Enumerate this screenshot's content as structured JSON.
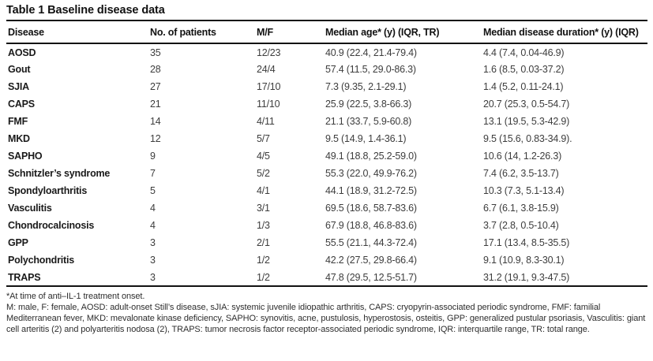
{
  "table": {
    "title": "Table 1 Baseline disease data",
    "columns": [
      "Disease",
      "No. of patients",
      "M/F",
      "Median age* (y) (IQR, TR)",
      "Median disease duration* (y) (IQR)"
    ],
    "rows": [
      {
        "disease": "AOSD",
        "patients": "35",
        "mf": "12/23",
        "age": "40.9 (22.4, 21.4-79.4)",
        "duration": "4.4 (7.4, 0.04-46.9)"
      },
      {
        "disease": "Gout",
        "patients": "28",
        "mf": "24/4",
        "age": "57.4 (11.5, 29.0-86.3)",
        "duration": "1.6 (8.5, 0.03-37.2)"
      },
      {
        "disease": "SJIA",
        "patients": "27",
        "mf": "17/10",
        "age": "7.3 (9.35, 2.1-29.1)",
        "duration": "1.4 (5.2, 0.11-24.1)"
      },
      {
        "disease": "CAPS",
        "patients": "21",
        "mf": "11/10",
        "age": "25.9 (22.5, 3.8-66.3)",
        "duration": "20.7 (25.3, 0.5-54.7)"
      },
      {
        "disease": "FMF",
        "patients": "14",
        "mf": "4/11",
        "age": "21.1 (33.7, 5.9-60.8)",
        "duration": "13.1 (19.5, 5.3-42.9)"
      },
      {
        "disease": "MKD",
        "patients": "12",
        "mf": "5/7",
        "age": "9.5 (14.9, 1.4-36.1)",
        "duration": "9.5 (15.6, 0.83-34.9)."
      },
      {
        "disease": "SAPHO",
        "patients": "9",
        "mf": "4/5",
        "age": "49.1 (18.8, 25.2-59.0)",
        "duration": "10.6 (14, 1.2-26.3)"
      },
      {
        "disease": "Schnitzler’s syndrome",
        "patients": "7",
        "mf": "5/2",
        "age": "55.3 (22.0, 49.9-76.2)",
        "duration": "7.4 (6.2, 3.5-13.7)"
      },
      {
        "disease": "Spondyloarthritis",
        "patients": "5",
        "mf": "4/1",
        "age": "44.1 (18.9, 31.2-72.5)",
        "duration": "10.3 (7.3, 5.1-13.4)"
      },
      {
        "disease": "Vasculitis",
        "patients": "4",
        "mf": "3/1",
        "age": "69.5 (18.6, 58.7-83.6)",
        "duration": "6.7 (6.1, 3.8-15.9)"
      },
      {
        "disease": "Chondrocalcinosis",
        "patients": "4",
        "mf": "1/3",
        "age": "67.9 (18.8, 46.8-83.6)",
        "duration": "3.7 (2.8, 0.5-10.4)"
      },
      {
        "disease": "GPP",
        "patients": "3",
        "mf": "2/1",
        "age": "55.5 (21.1, 44.3-72.4)",
        "duration": "17.1 (13.4, 8.5-35.5)"
      },
      {
        "disease": "Polychondritis",
        "patients": "3",
        "mf": "1/2",
        "age": "42.2 (27.5, 29.8-66.4)",
        "duration": "9.1 (10.9, 8.3-30.1)"
      },
      {
        "disease": "TRAPS",
        "patients": "3",
        "mf": "1/2",
        "age": "47.8 (29.5, 12.5-51.7)",
        "duration": "31.2 (19.1, 9.3-47.5)"
      }
    ],
    "footnotes": [
      "*At time of anti–IL-1 treatment onset.",
      "M: male, F: female, AOSD: adult-onset Still’s disease, sJIA: systemic juvenile idiopathic arthritis, CAPS: cryopyrin-associated periodic syndrome, FMF: familial Mediterranean fever, MKD: mevalonate kinase deficiency, SAPHO: synovitis, acne, pustulosis, hyperostosis, osteitis, GPP: generalized pustular psoriasis, Vasculitis: giant cell arteritis (2) and polyarteritis nodosa (2), TRAPS: tumor necrosis factor receptor-associated periodic syndrome, IQR: interquartile range, TR: total range."
    ]
  }
}
